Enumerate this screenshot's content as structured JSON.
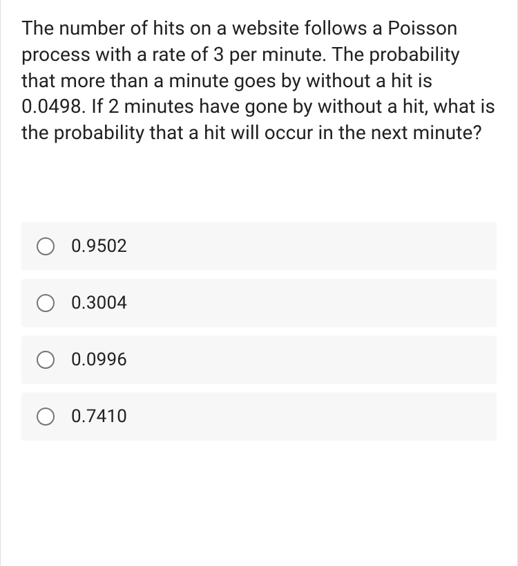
{
  "question": {
    "text": "The number of hits on a website follows a Poisson process with a rate of 3 per minute. The probability that more than a minute goes by without a hit is 0.0498. If 2 minutes have gone by without a hit, what is the probability that a hit will occur in the next minute?",
    "fontsize": 28,
    "color": "#202124"
  },
  "options": [
    {
      "label": "0.9502",
      "selected": false
    },
    {
      "label": "0.3004",
      "selected": false
    },
    {
      "label": "0.0996",
      "selected": false
    },
    {
      "label": "0.7410",
      "selected": false
    }
  ],
  "styling": {
    "option_background": "#f7f7f7",
    "radio_border": "#757575",
    "card_border": "#e0e0e0",
    "option_gap": 12,
    "option_padding": 20,
    "option_fontsize": 26
  }
}
